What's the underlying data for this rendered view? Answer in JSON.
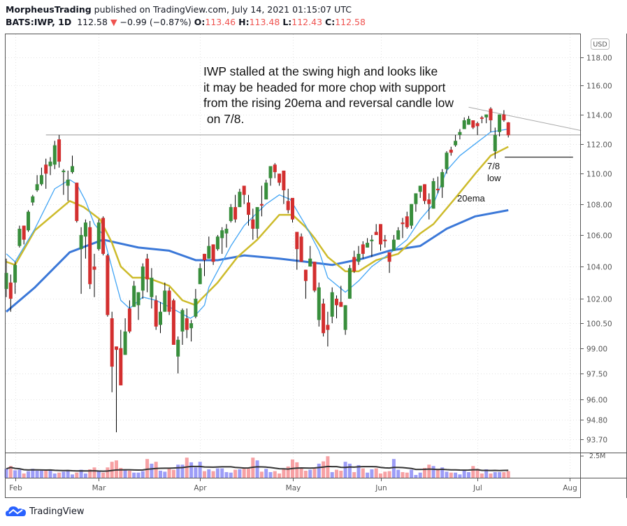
{
  "header": {
    "author": "MorpheusTrading",
    "published_text": "published on TradingView.com, July 14, 2021 01:15:07 UTC",
    "symbol": "BATS:IWP, 1D",
    "last_price": "112.58",
    "change": "−0.99 (−0.87%)",
    "open_label": "O:",
    "open": "113.46",
    "high_label": "H:",
    "high": "113.48",
    "low_label": "L:",
    "low": "112.43",
    "close_label": "C:",
    "close": "112.58",
    "direction_icon": "triangle-down-icon"
  },
  "footer": {
    "brand": "TradingView",
    "logo_icon": "tradingview-cloud-icon"
  },
  "colors": {
    "up": "#388e3c",
    "down": "#d32f2f",
    "vol_up": "#9d9df7",
    "vol_down": "#f7a1a4",
    "ema10": "#42a5f5",
    "ema20": "#cdbb2b",
    "ma50": "#3b78d8",
    "change_red": "#ef5350"
  },
  "chart_data": {
    "type": "candlestick",
    "title": "",
    "currency": "USD",
    "y_scale": "log",
    "ylim": [
      93.2,
      119
    ],
    "grid": true,
    "price_ticks": [
      "118.00",
      "116.00",
      "114.00",
      "112.00",
      "110.00",
      "108.00",
      "106.00",
      "104.00",
      "102.00",
      "100.50",
      "99.00",
      "97.50",
      "96.00",
      "94.80",
      "93.70"
    ],
    "time_ticks": [
      {
        "label": "Feb",
        "bar": 2
      },
      {
        "label": "Mar",
        "bar": 21
      },
      {
        "label": "Apr",
        "bar": 44
      },
      {
        "label": "May",
        "bar": 65
      },
      {
        "label": "Jun",
        "bar": 85
      },
      {
        "label": "Jul",
        "bar": 107
      },
      {
        "label": "Aug",
        "bar": 128
      }
    ],
    "volume_axis_label": "2.5M",
    "volume_axis_value": 2.5,
    "ohlc_fields": [
      "open",
      "high",
      "low",
      "close"
    ],
    "candles": [
      [
        102.6,
        104.5,
        102.1,
        103.6
      ],
      [
        103.0,
        103.5,
        101.2,
        102.0
      ],
      [
        103.0,
        104.3,
        102.3,
        104.1
      ],
      [
        105.3,
        106.6,
        105.2,
        106.4
      ],
      [
        106.6,
        106.6,
        105.4,
        105.7
      ],
      [
        106.3,
        107.6,
        106.2,
        107.5
      ],
      [
        108.1,
        108.6,
        107.9,
        108.5
      ],
      [
        108.9,
        109.9,
        108.8,
        109.3
      ],
      [
        109.3,
        110.4,
        109.2,
        109.9
      ],
      [
        110.6,
        111.0,
        109.0,
        110.0
      ],
      [
        110.5,
        111.1,
        109.9,
        110.8
      ],
      [
        110.6,
        112.2,
        110.3,
        111.9
      ],
      [
        112.3,
        112.6,
        110.4,
        110.8
      ],
      [
        110.1,
        110.3,
        108.6,
        110.2
      ],
      [
        109.2,
        110.2,
        108.2,
        109.6
      ],
      [
        110.1,
        111.2,
        110.0,
        110.5
      ],
      [
        109.4,
        109.4,
        106.8,
        106.9
      ],
      [
        105.1,
        106.5,
        102.3,
        106.0
      ],
      [
        105.9,
        107.0,
        104.5,
        106.8
      ],
      [
        106.5,
        106.9,
        102.6,
        102.9
      ],
      [
        104.0,
        104.8,
        102.1,
        103.8
      ],
      [
        105.1,
        107.0,
        105.0,
        106.8
      ],
      [
        107.1,
        107.2,
        104.7,
        104.8
      ],
      [
        104.7,
        104.8,
        100.9,
        101.0
      ],
      [
        100.8,
        101.2,
        96.4,
        97.9
      ],
      [
        99.1,
        99.1,
        94.1,
        98.9
      ],
      [
        99.0,
        100.1,
        96.8,
        96.8
      ],
      [
        98.6,
        100.8,
        98.6,
        100.0
      ],
      [
        101.4,
        101.9,
        99.9,
        100.0
      ],
      [
        101.5,
        103.1,
        101.5,
        102.8
      ],
      [
        101.6,
        102.4,
        100.7,
        102.4
      ],
      [
        102.5,
        104.2,
        102.0,
        104.0
      ],
      [
        104.5,
        104.8,
        102.4,
        103.2
      ],
      [
        102.1,
        103.9,
        101.4,
        103.3
      ],
      [
        101.9,
        102.2,
        100.1,
        100.3
      ],
      [
        100.4,
        101.8,
        99.9,
        101.2
      ],
      [
        101.2,
        103.0,
        101.2,
        102.5
      ],
      [
        102.5,
        102.7,
        101.0,
        101.2
      ],
      [
        101.9,
        102.0,
        99.2,
        99.2
      ],
      [
        98.5,
        99.7,
        97.5,
        99.5
      ],
      [
        100.0,
        101.4,
        99.2,
        101.3
      ],
      [
        100.8,
        101.4,
        99.6,
        100.1
      ],
      [
        100.2,
        100.7,
        99.4,
        100.5
      ],
      [
        100.9,
        102.6,
        100.8,
        102.0
      ],
      [
        102.9,
        104.2,
        102.9,
        103.9
      ],
      [
        104.8,
        104.8,
        103.4,
        104.4
      ],
      [
        104.5,
        105.9,
        104.5,
        105.3
      ],
      [
        105.4,
        105.4,
        104.1,
        104.3
      ],
      [
        105.1,
        106.0,
        105.0,
        105.9
      ],
      [
        105.8,
        106.5,
        104.8,
        106.3
      ],
      [
        106.1,
        106.7,
        105.2,
        106.4
      ],
      [
        106.9,
        108.0,
        106.8,
        107.8
      ],
      [
        107.8,
        108.6,
        106.8,
        107.0
      ],
      [
        107.8,
        109.0,
        107.8,
        108.8
      ],
      [
        109.2,
        109.2,
        108.0,
        108.6
      ],
      [
        108.1,
        108.6,
        106.6,
        107.3
      ],
      [
        107.0,
        107.7,
        105.7,
        106.4
      ],
      [
        106.4,
        107.8,
        105.8,
        107.8
      ],
      [
        108.0,
        109.2,
        107.2,
        107.9
      ],
      [
        108.3,
        109.6,
        108.3,
        109.4
      ],
      [
        109.7,
        110.5,
        109.2,
        110.5
      ],
      [
        110.6,
        110.7,
        109.7,
        110.1
      ],
      [
        110.0,
        110.0,
        109.2,
        109.4
      ],
      [
        110.2,
        110.2,
        108.0,
        108.9
      ],
      [
        108.2,
        109.0,
        107.4,
        107.6
      ],
      [
        108.4,
        108.4,
        106.8,
        107.0
      ],
      [
        106.2,
        106.2,
        103.8,
        105.1
      ],
      [
        105.9,
        106.1,
        104.3,
        104.3
      ],
      [
        103.8,
        103.8,
        102.0,
        103.1
      ],
      [
        104.0,
        105.3,
        104.0,
        104.5
      ],
      [
        104.3,
        104.3,
        102.4,
        102.5
      ],
      [
        100.7,
        103.0,
        100.3,
        102.7
      ],
      [
        101.7,
        102.0,
        99.7,
        99.9
      ],
      [
        100.4,
        101.2,
        99.1,
        100.1
      ],
      [
        100.9,
        102.7,
        100.5,
        102.4
      ],
      [
        102.0,
        102.2,
        100.8,
        101.6
      ],
      [
        101.8,
        102.8,
        101.5,
        101.5
      ],
      [
        100.1,
        101.6,
        99.8,
        101.6
      ],
      [
        102.0,
        104.1,
        102.0,
        103.9
      ],
      [
        104.6,
        105.0,
        103.6,
        103.7
      ],
      [
        104.3,
        105.3,
        104.1,
        104.8
      ],
      [
        105.4,
        105.6,
        104.5,
        104.8
      ],
      [
        105.2,
        105.8,
        105.2,
        105.5
      ],
      [
        105.6,
        106.0,
        104.6,
        105.7
      ],
      [
        106.2,
        106.7,
        106.0,
        106.0
      ],
      [
        106.7,
        106.7,
        105.0,
        105.4
      ],
      [
        105.7,
        106.0,
        105.2,
        105.6
      ],
      [
        104.9,
        104.9,
        103.6,
        104.3
      ],
      [
        105.0,
        106.0,
        105.0,
        105.7
      ],
      [
        105.7,
        106.5,
        105.7,
        106.3
      ],
      [
        106.8,
        107.1,
        105.8,
        106.7
      ],
      [
        107.2,
        107.5,
        106.4,
        106.5
      ],
      [
        106.6,
        108.0,
        106.4,
        108.0
      ],
      [
        108.0,
        108.7,
        107.5,
        108.7
      ],
      [
        108.8,
        109.2,
        108.4,
        109.2
      ],
      [
        109.3,
        109.3,
        108.0,
        108.2
      ],
      [
        108.3,
        108.7,
        107.0,
        108.0
      ],
      [
        107.7,
        109.7,
        107.7,
        109.5
      ],
      [
        109.0,
        109.8,
        108.7,
        108.9
      ],
      [
        109.1,
        110.3,
        108.4,
        110.1
      ],
      [
        110.3,
        111.5,
        110.0,
        111.4
      ],
      [
        111.6,
        111.8,
        111.2,
        111.4
      ],
      [
        111.9,
        112.6,
        111.8,
        112.2
      ],
      [
        112.6,
        113.0,
        112.3,
        112.8
      ],
      [
        113.0,
        113.8,
        113.0,
        113.6
      ],
      [
        113.3,
        113.9,
        113.3,
        113.7
      ],
      [
        113.6,
        113.6,
        113.0,
        113.1
      ],
      [
        113.4,
        113.5,
        112.6,
        113.2
      ],
      [
        113.8,
        113.9,
        113.4,
        113.7
      ],
      [
        113.8,
        114.0,
        113.4,
        114.0
      ],
      [
        114.4,
        114.5,
        112.8,
        113.6
      ],
      [
        111.5,
        113.1,
        111.0,
        112.6
      ],
      [
        112.8,
        114.0,
        112.5,
        114.0
      ],
      [
        114.0,
        114.3,
        113.5,
        113.6
      ],
      [
        113.46,
        113.48,
        112.43,
        112.58
      ]
    ],
    "volume_millions": [
      1.03,
      1.35,
      0.86,
      0.92,
      0.49,
      0.76,
      1.03,
      0.81,
      0.81,
      0.86,
      0.92,
      0.49,
      0.59,
      0.7,
      0.86,
      0.38,
      0.59,
      0.92,
      0.49,
      0.97,
      1.19,
      0.81,
      0.59,
      1.19,
      1.84,
      2.0,
      1.13,
      0.92,
      0.81,
      0.59,
      0.59,
      0.76,
      2.16,
      1.62,
      1.84,
      0.81,
      0.7,
      1.03,
      0.92,
      1.51,
      1.51,
      2.32,
      1.78,
      1.19,
      1.84,
      0.76,
      0.97,
      0.76,
      1.08,
      1.08,
      0.65,
      0.59,
      0.92,
      0.97,
      1.03,
      1.03,
      2.32,
      2.0,
      0.7,
      1.03,
      0.65,
      0.76,
      0.49,
      0.97,
      1.3,
      2.11,
      1.78,
      1.13,
      0.81,
      0.92,
      1.03,
      1.62,
      1.89,
      2.48,
      0.65,
      0.92,
      0.81,
      1.84,
      1.62,
      0.65,
      1.46,
      1.08,
      0.59,
      0.97,
      1.08,
      0.49,
      0.7,
      0.76,
      2.16,
      0.92,
      0.65,
      0.59,
      0.92,
      0.32,
      0.59,
      1.13,
      1.51,
      1.35,
      1.03,
      1.19,
      0.7,
      0.59,
      0.59,
      0.38,
      0.92,
      0.65,
      1.35,
      1.03,
      0.49,
      0.97,
      0.49,
      0.65,
      0.65,
      0.65,
      0.76
    ],
    "moving_averages": {
      "ema10_points": [
        [
          0,
          104.8
        ],
        [
          2,
          104.3
        ],
        [
          6.5,
          106.4
        ],
        [
          11,
          109.0
        ],
        [
          14.4,
          109.6
        ],
        [
          16,
          109.3
        ],
        [
          18,
          108.2
        ],
        [
          20,
          106.7
        ],
        [
          22,
          106.0
        ],
        [
          24.8,
          103.1
        ],
        [
          26,
          101.9
        ],
        [
          28,
          101.4
        ],
        [
          31,
          102.1
        ],
        [
          34,
          101.9
        ],
        [
          37,
          101.5
        ],
        [
          41.8,
          100.8
        ],
        [
          43,
          101.0
        ],
        [
          45,
          101.6
        ],
        [
          46,
          102.7
        ],
        [
          51,
          105.3
        ],
        [
          54,
          106.6
        ],
        [
          59,
          108.0
        ],
        [
          62,
          108.6
        ],
        [
          64.5,
          108.3
        ],
        [
          68,
          106.6
        ],
        [
          71,
          105.0
        ],
        [
          73,
          103.3
        ],
        [
          77,
          102.4
        ],
        [
          80,
          103.1
        ],
        [
          83,
          104.0
        ],
        [
          87,
          104.8
        ],
        [
          91,
          105.7
        ],
        [
          94,
          107.0
        ],
        [
          97,
          108.0
        ],
        [
          100,
          110.2
        ],
        [
          103,
          111.2
        ],
        [
          106.5,
          112.0
        ],
        [
          110,
          112.8
        ],
        [
          114,
          113.0
        ]
      ],
      "ema20_points": [
        [
          0,
          104.3
        ],
        [
          2,
          104.1
        ],
        [
          6.5,
          106.3
        ],
        [
          14.4,
          108.2
        ],
        [
          17.6,
          107.8
        ],
        [
          21.3,
          107.0
        ],
        [
          24,
          105.5
        ],
        [
          26,
          104.0
        ],
        [
          28.7,
          103.3
        ],
        [
          32,
          103.3
        ],
        [
          37,
          102.8
        ],
        [
          40,
          101.9
        ],
        [
          43,
          101.6
        ],
        [
          44,
          101.9
        ],
        [
          48,
          103.0
        ],
        [
          52.5,
          104.6
        ],
        [
          57,
          105.7
        ],
        [
          62,
          107.3
        ],
        [
          65,
          107.3
        ],
        [
          68,
          106.5
        ],
        [
          70,
          105.8
        ],
        [
          73,
          104.6
        ],
        [
          77,
          103.7
        ],
        [
          80,
          103.7
        ],
        [
          84,
          104.4
        ],
        [
          89,
          104.8
        ],
        [
          94,
          106.1
        ],
        [
          97,
          106.7
        ],
        [
          102,
          108.4
        ],
        [
          106.5,
          110.0
        ],
        [
          110,
          111.2
        ],
        [
          114,
          111.8
        ]
      ],
      "ma50_points": [
        [
          0,
          101.2
        ],
        [
          6.5,
          102.7
        ],
        [
          14.4,
          104.9
        ],
        [
          22,
          105.7
        ],
        [
          30,
          105.2
        ],
        [
          37,
          105.0
        ],
        [
          43,
          104.4
        ],
        [
          48,
          104.4
        ],
        [
          54,
          104.7
        ],
        [
          62,
          104.5
        ],
        [
          68,
          104.3
        ],
        [
          74,
          104.1
        ],
        [
          81,
          104.5
        ],
        [
          87,
          105.0
        ],
        [
          94,
          105.3
        ],
        [
          100,
          106.4
        ],
        [
          106.5,
          107.2
        ],
        [
          114,
          107.6
        ]
      ]
    },
    "annotations": {
      "note_lines": [
        "IWP stalled at the swing high and looks like",
        "it may be headed for more chop with support",
        "from the rising 20ema and reversal candle low",
        " on 7/8."
      ],
      "label_78": "7/8",
      "label_low": "low",
      "label_20ema": "20ema",
      "swing_high_line": {
        "price": 112.6,
        "from_bar": 9,
        "to_bar": 130.5
      },
      "trendline": {
        "from_bar": 105,
        "from_price": 114.5,
        "to_bar": 130.5,
        "to_price": 112.9
      },
      "low_78_line": {
        "price": 111.1,
        "from_bar": 113.2,
        "to_bar": 128.7
      }
    }
  }
}
